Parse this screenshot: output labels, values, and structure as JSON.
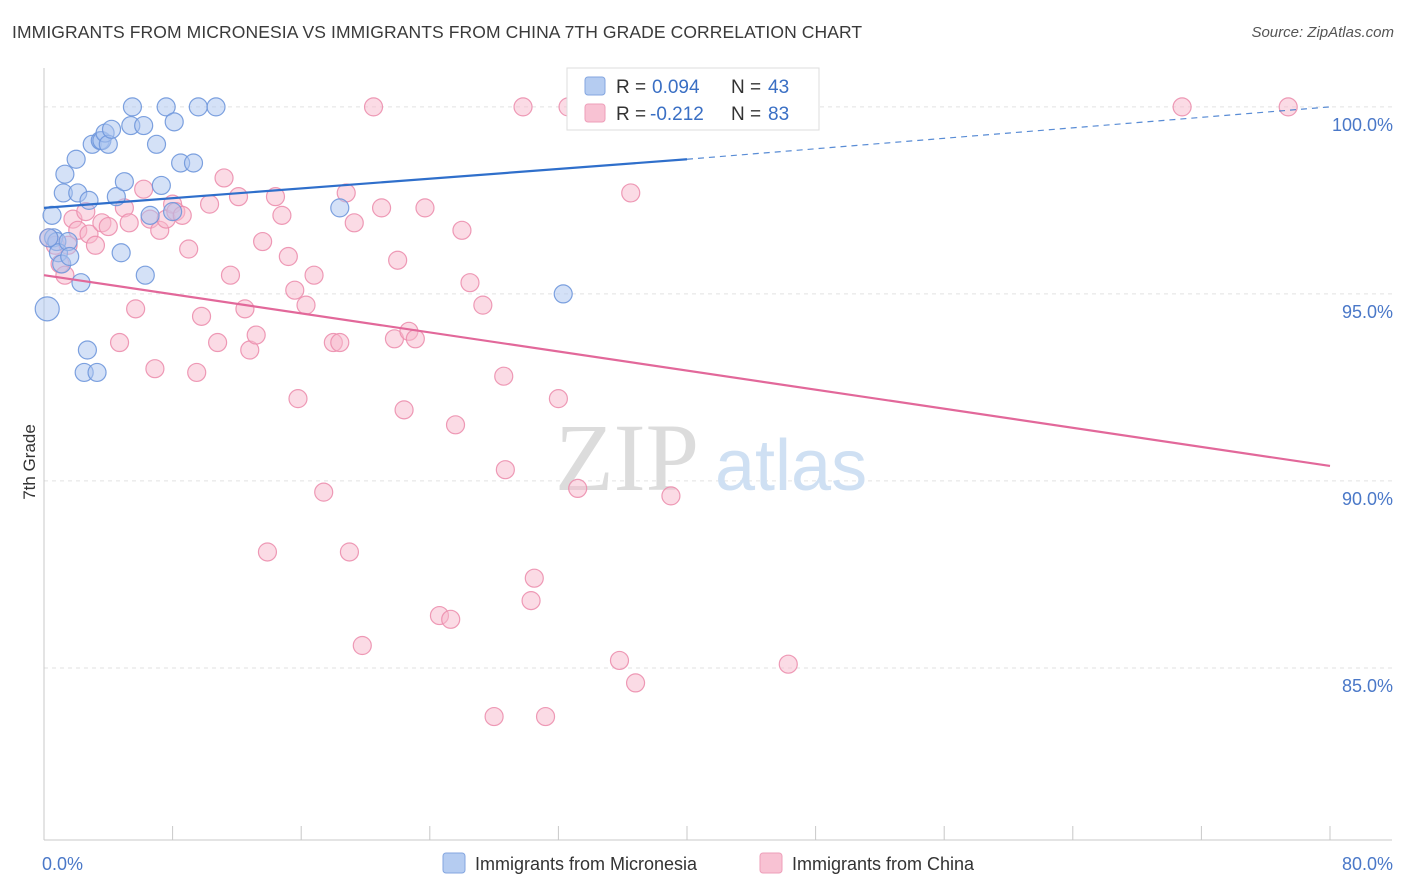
{
  "title": "IMMIGRANTS FROM MICRONESIA VS IMMIGRANTS FROM CHINA 7TH GRADE CORRELATION CHART",
  "source": "Source: ZipAtlas.com",
  "watermark": {
    "zip": "ZIP",
    "atlas": "atlas"
  },
  "colors": {
    "micronesia_fill": "#a9c4ef",
    "micronesia_stroke": "#6f97db",
    "micronesia_line": "#2f6fcb",
    "china_fill": "#f7b8cc",
    "china_stroke": "#ec8fae",
    "china_line": "#e2689a",
    "tick_text": "#4a78c8",
    "grid": "#e2e2e2"
  },
  "stats": [
    {
      "r_label": "R = ",
      "r_value": "0.094",
      "n_label": "N = ",
      "n_value": "43"
    },
    {
      "r_label": "R = ",
      "r_value": "-0.212",
      "n_label": "N = ",
      "n_value": "83"
    }
  ],
  "chart_data": {
    "type": "scatter",
    "title": "IMMIGRANTS FROM MICRONESIA VS IMMIGRANTS FROM CHINA 7TH GRADE CORRELATION CHART",
    "xlabel": "",
    "ylabel": "7th Grade",
    "xlim": [
      0,
      80
    ],
    "ylim": [
      80.4,
      101.2
    ],
    "x_tick_labels": [
      {
        "value": 0,
        "label": "0.0%"
      },
      {
        "value": 80,
        "label": "80.0%"
      }
    ],
    "x_minor_ticks": [
      0,
      8,
      16,
      24,
      32,
      40,
      48,
      56,
      64,
      72,
      80
    ],
    "y_ticks": [
      {
        "value": 100,
        "label": "100.0%"
      },
      {
        "value": 95,
        "label": "95.0%"
      },
      {
        "value": 90,
        "label": "90.0%"
      },
      {
        "value": 85,
        "label": "85.0%"
      }
    ],
    "grid": true,
    "legend_position": "bottom-center",
    "series": [
      {
        "name": "Immigrants from Micronesia",
        "trend": {
          "x0": 0,
          "y0": 97.3,
          "x1": 40,
          "y1": 98.6,
          "dash_to_x": 80,
          "dash_to_y": 100.0
        },
        "points": [
          [
            0.2,
            94.6
          ],
          [
            0.5,
            97.1
          ],
          [
            0.6,
            96.5
          ],
          [
            0.8,
            96.4
          ],
          [
            0.9,
            96.1
          ],
          [
            1.1,
            95.8
          ],
          [
            1.2,
            97.7
          ],
          [
            1.3,
            98.2
          ],
          [
            1.5,
            96.4
          ],
          [
            1.6,
            96.0
          ],
          [
            2.0,
            98.6
          ],
          [
            2.1,
            97.7
          ],
          [
            2.3,
            95.3
          ],
          [
            2.5,
            92.9
          ],
          [
            2.7,
            93.5
          ],
          [
            2.8,
            97.5
          ],
          [
            3.0,
            99.0
          ],
          [
            3.3,
            92.9
          ],
          [
            3.5,
            99.1
          ],
          [
            3.6,
            99.1
          ],
          [
            3.8,
            99.3
          ],
          [
            4.0,
            99.0
          ],
          [
            4.2,
            99.4
          ],
          [
            4.5,
            97.6
          ],
          [
            4.8,
            96.1
          ],
          [
            5.0,
            98.0
          ],
          [
            5.4,
            99.5
          ],
          [
            5.5,
            100.0
          ],
          [
            6.2,
            99.5
          ],
          [
            6.3,
            95.5
          ],
          [
            6.6,
            97.1
          ],
          [
            7.0,
            99.0
          ],
          [
            7.3,
            97.9
          ],
          [
            7.6,
            100.0
          ],
          [
            8.0,
            97.2
          ],
          [
            8.1,
            99.6
          ],
          [
            8.5,
            98.5
          ],
          [
            9.3,
            98.5
          ],
          [
            9.6,
            100.0
          ],
          [
            10.7,
            100.0
          ],
          [
            18.4,
            97.3
          ],
          [
            32.3,
            95.0
          ],
          [
            0.3,
            96.5
          ]
        ]
      },
      {
        "name": "Immigrants from China",
        "trend": {
          "x0": 0,
          "y0": 95.5,
          "x1": 80,
          "y1": 90.4
        },
        "points": [
          [
            0.3,
            96.5
          ],
          [
            0.7,
            96.3
          ],
          [
            1.0,
            95.8
          ],
          [
            1.3,
            95.5
          ],
          [
            1.5,
            96.3
          ],
          [
            1.8,
            97.0
          ],
          [
            2.1,
            96.7
          ],
          [
            2.6,
            97.2
          ],
          [
            2.8,
            96.6
          ],
          [
            3.2,
            96.3
          ],
          [
            3.6,
            96.9
          ],
          [
            4.0,
            96.8
          ],
          [
            4.7,
            93.7
          ],
          [
            5.0,
            97.3
          ],
          [
            5.3,
            96.9
          ],
          [
            5.7,
            94.6
          ],
          [
            6.2,
            97.8
          ],
          [
            6.6,
            97.0
          ],
          [
            6.9,
            93.0
          ],
          [
            7.2,
            96.7
          ],
          [
            7.6,
            97.0
          ],
          [
            8.0,
            97.4
          ],
          [
            8.2,
            97.2
          ],
          [
            8.6,
            97.1
          ],
          [
            9.0,
            96.2
          ],
          [
            9.5,
            92.9
          ],
          [
            9.8,
            94.4
          ],
          [
            10.3,
            97.4
          ],
          [
            10.8,
            93.7
          ],
          [
            11.2,
            98.1
          ],
          [
            11.6,
            95.5
          ],
          [
            12.1,
            97.6
          ],
          [
            12.5,
            94.6
          ],
          [
            12.8,
            93.5
          ],
          [
            13.2,
            93.9
          ],
          [
            13.6,
            96.4
          ],
          [
            13.9,
            88.1
          ],
          [
            14.4,
            97.6
          ],
          [
            14.8,
            97.1
          ],
          [
            15.2,
            96.0
          ],
          [
            15.6,
            95.1
          ],
          [
            15.8,
            92.2
          ],
          [
            16.3,
            94.7
          ],
          [
            16.8,
            95.5
          ],
          [
            17.4,
            89.7
          ],
          [
            18.0,
            93.7
          ],
          [
            18.4,
            93.7
          ],
          [
            18.8,
            97.7
          ],
          [
            19.0,
            88.1
          ],
          [
            19.3,
            96.9
          ],
          [
            19.8,
            85.6
          ],
          [
            20.5,
            100.0
          ],
          [
            21.0,
            97.3
          ],
          [
            21.8,
            93.8
          ],
          [
            22.0,
            95.9
          ],
          [
            22.4,
            91.9
          ],
          [
            22.7,
            94.0
          ],
          [
            23.1,
            93.8
          ],
          [
            23.7,
            97.3
          ],
          [
            24.6,
            86.4
          ],
          [
            25.3,
            86.3
          ],
          [
            25.6,
            91.5
          ],
          [
            26.0,
            96.7
          ],
          [
            26.5,
            95.3
          ],
          [
            27.3,
            94.7
          ],
          [
            28.0,
            83.7
          ],
          [
            28.6,
            92.8
          ],
          [
            28.7,
            90.3
          ],
          [
            29.8,
            100.0
          ],
          [
            30.3,
            86.8
          ],
          [
            30.5,
            87.4
          ],
          [
            31.2,
            83.7
          ],
          [
            32.0,
            92.2
          ],
          [
            32.6,
            100.0
          ],
          [
            33.2,
            89.8
          ],
          [
            35.8,
            85.2
          ],
          [
            36.5,
            97.7
          ],
          [
            36.8,
            84.6
          ],
          [
            39.0,
            89.6
          ],
          [
            43.2,
            100.0
          ],
          [
            46.3,
            85.1
          ],
          [
            70.8,
            100.0
          ],
          [
            77.4,
            100.0
          ]
        ]
      }
    ]
  }
}
